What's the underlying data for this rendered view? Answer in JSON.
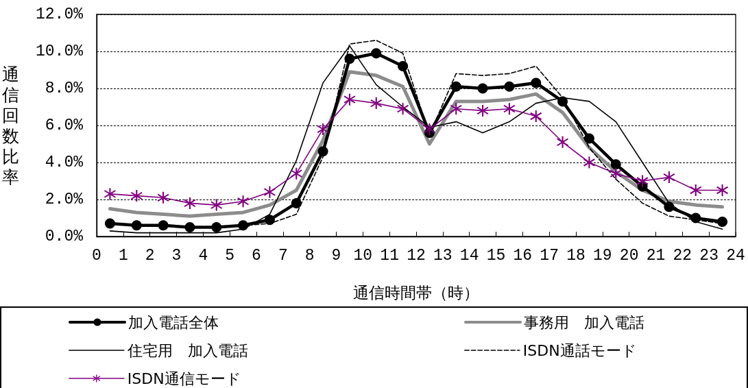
{
  "chart_data": {
    "type": "line",
    "xlabel": "通信時間帯（時）",
    "ylabel": "通信回数比率",
    "x": [
      0.5,
      1.5,
      2.5,
      3.5,
      4.5,
      5.5,
      6.5,
      7.5,
      8.5,
      9.5,
      10.5,
      11.5,
      12.5,
      13.5,
      14.5,
      15.5,
      16.5,
      17.5,
      18.5,
      19.5,
      20.5,
      21.5,
      22.5,
      23.5
    ],
    "xlim": [
      0,
      24
    ],
    "xticks": [
      0,
      1,
      2,
      3,
      4,
      5,
      6,
      7,
      8,
      9,
      10,
      11,
      12,
      13,
      14,
      15,
      16,
      17,
      18,
      19,
      20,
      21,
      22,
      23,
      24
    ],
    "ylim": [
      0,
      12
    ],
    "yticks": [
      {
        "value": 0,
        "label": "0.0%"
      },
      {
        "value": 2,
        "label": "2.0%"
      },
      {
        "value": 4,
        "label": "4.0%"
      },
      {
        "value": 6,
        "label": "6.0%"
      },
      {
        "value": 8,
        "label": "8.0%"
      },
      {
        "value": 10,
        "label": "10.0%"
      },
      {
        "value": 12,
        "label": "12.0%"
      }
    ],
    "grid": "y",
    "legend": "bottom",
    "series": [
      {
        "name": "加入電話全体",
        "color": "#000000",
        "marker": "circle",
        "line_style": "solid",
        "values": [
          0.7,
          0.6,
          0.6,
          0.5,
          0.5,
          0.6,
          0.9,
          1.8,
          4.6,
          9.6,
          9.9,
          9.2,
          5.6,
          8.1,
          8.0,
          8.1,
          8.3,
          7.3,
          5.3,
          3.9,
          2.7,
          1.6,
          1.0,
          0.8
        ]
      },
      {
        "name": "事務用　加入電話",
        "color": "#8c8c8c",
        "marker": "none",
        "line_style": "solid",
        "values": [
          1.5,
          1.3,
          1.2,
          1.1,
          1.2,
          1.3,
          1.7,
          2.5,
          5.2,
          8.9,
          8.7,
          8.1,
          5.0,
          7.3,
          7.3,
          7.4,
          7.7,
          6.7,
          4.8,
          3.5,
          2.5,
          1.9,
          1.7,
          1.6
        ]
      },
      {
        "name": "住宅用　加入電話",
        "color": "#000000",
        "marker": "none",
        "line_style": "solid",
        "values": [
          0.3,
          0.2,
          0.2,
          0.2,
          0.2,
          0.4,
          1.2,
          4.1,
          8.3,
          10.3,
          8.2,
          7.0,
          5.9,
          6.2,
          5.6,
          6.2,
          7.2,
          7.5,
          7.3,
          6.2,
          4.0,
          1.8,
          0.8,
          0.4
        ]
      },
      {
        "name": "ISDN通話モード",
        "color": "#000000",
        "marker": "none",
        "line_style": "dashed",
        "values": [
          0.7,
          0.6,
          0.6,
          0.5,
          0.5,
          0.6,
          0.7,
          1.2,
          4.3,
          10.4,
          10.6,
          9.9,
          5.5,
          8.8,
          8.7,
          8.8,
          9.2,
          7.5,
          4.8,
          3.1,
          1.8,
          1.1,
          0.9,
          0.7
        ]
      },
      {
        "name": "ISDN通信モード",
        "color": "#800080",
        "marker": "cross",
        "line_style": "solid",
        "values": [
          2.3,
          2.2,
          2.1,
          1.8,
          1.7,
          1.9,
          2.4,
          3.4,
          5.8,
          7.4,
          7.2,
          6.9,
          5.8,
          6.9,
          6.8,
          6.9,
          6.5,
          5.1,
          4.0,
          3.4,
          3.0,
          3.2,
          2.5,
          2.5
        ]
      }
    ]
  }
}
